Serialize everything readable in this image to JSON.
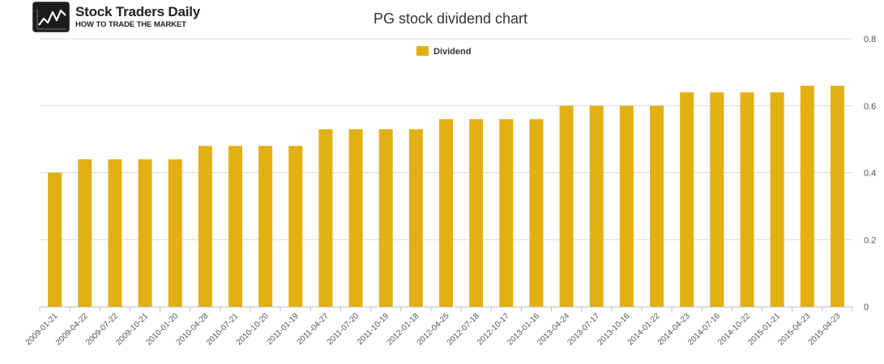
{
  "logo": {
    "name": "Stock Traders Daily",
    "tagline": "HOW TO TRADE THE MARKET"
  },
  "chart_data": {
    "type": "bar",
    "title": "PG stock dividend chart",
    "legend": {
      "position": "top-center",
      "entries": [
        "Dividend"
      ]
    },
    "series": [
      {
        "name": "Dividend",
        "color": "#e2b013",
        "values": [
          0.4,
          0.44,
          0.44,
          0.44,
          0.44,
          0.48,
          0.48,
          0.48,
          0.48,
          0.53,
          0.53,
          0.53,
          0.53,
          0.56,
          0.56,
          0.56,
          0.56,
          0.6,
          0.6,
          0.6,
          0.6,
          0.64,
          0.64,
          0.64,
          0.64,
          0.66,
          0.66
        ]
      }
    ],
    "categories": [
      "2009-01-21",
      "2009-04-22",
      "2009-07-22",
      "2009-10-21",
      "2010-01-20",
      "2010-04-28",
      "2010-07-21",
      "2010-10-20",
      "2011-01-19",
      "2011-04-27",
      "2011-07-20",
      "2011-10-19",
      "2012-01-18",
      "2012-04-25",
      "2012-07-18",
      "2012-10-17",
      "2013-01-16",
      "2013-04-24",
      "2013-07-17",
      "2013-10-16",
      "2014-01-22",
      "2014-04-23",
      "2014-07-16",
      "2014-10-22",
      "2015-01-21",
      "2015-04-23",
      "2015-04-23"
    ],
    "ylim": [
      0,
      0.8
    ],
    "yticks": [
      "0",
      "0.2",
      "0.4",
      "0.6",
      "0.8"
    ],
    "yaxis_side": "right",
    "grid": true,
    "xlabel": "",
    "ylabel": ""
  }
}
